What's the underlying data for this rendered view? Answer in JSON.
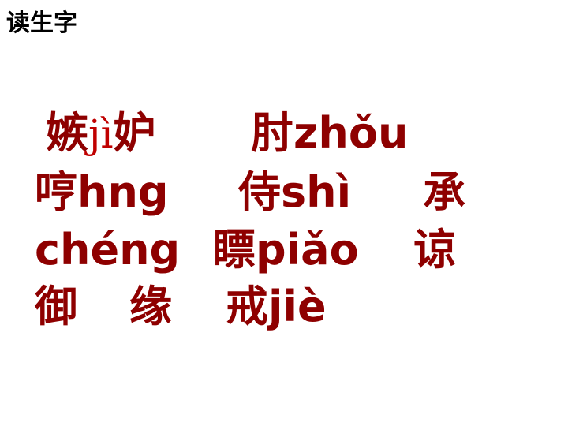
{
  "slide": {
    "title": "读生字",
    "accent_color": "#8e0000",
    "rows": [
      [
        {
          "text_a": "嫉",
          "text_b": "jì",
          "text_c": "妒"
        },
        {
          "text": "肘zhǒu"
        }
      ],
      [
        {
          "text": "哼hng"
        },
        {
          "text": "侍shì"
        },
        {
          "text": "承"
        }
      ],
      [
        {
          "text": "chéng"
        },
        {
          "text": "瞟piǎo"
        },
        {
          "text": "谅"
        }
      ],
      [
        {
          "text": "御"
        },
        {
          "text": "缘"
        },
        {
          "text": "戒jiè"
        }
      ]
    ]
  }
}
